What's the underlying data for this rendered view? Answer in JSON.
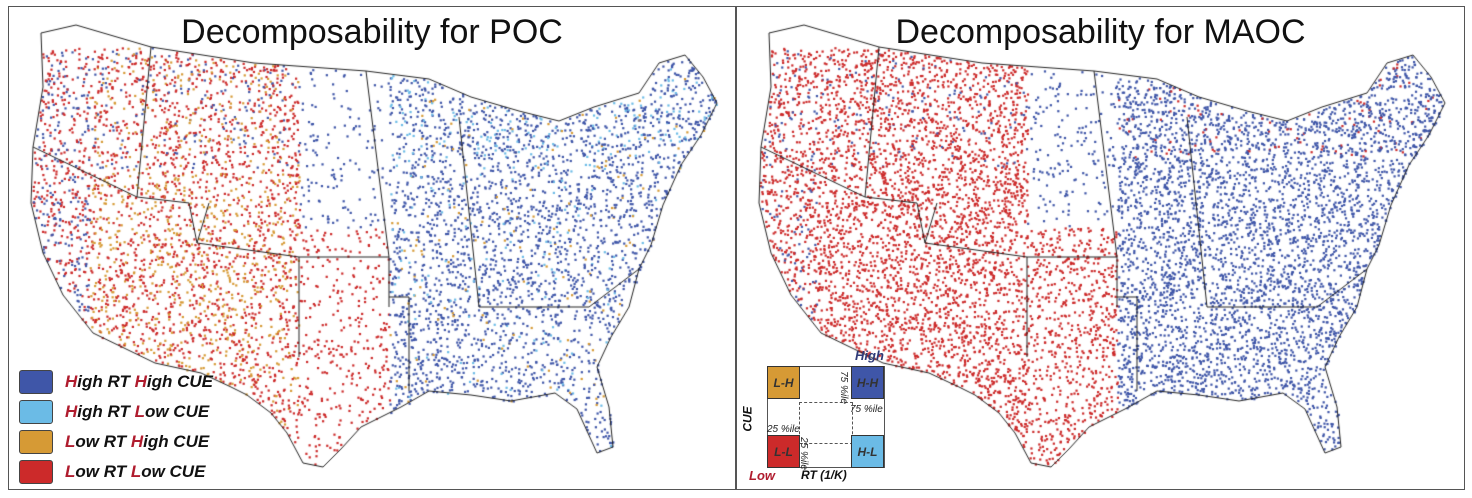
{
  "panels": [
    {
      "title": "Decomposability for POC"
    },
    {
      "title": "Decomposability for MAOC"
    }
  ],
  "colors": {
    "HH": "#3f56a8",
    "HL": "#6bbbe6",
    "LH": "#d69a35",
    "LL": "#cc2a2a"
  },
  "legend": [
    {
      "a": "H",
      "b": "igh RT ",
      "c": "H",
      "d": "igh CUE",
      "color": "#3f56a8"
    },
    {
      "a": "H",
      "b": "igh RT ",
      "c": "L",
      "d": "ow CUE",
      "color": "#6bbbe6"
    },
    {
      "a": "L",
      "b": "ow RT ",
      "c": "H",
      "d": "igh CUE",
      "color": "#d69a35"
    },
    {
      "a": "L",
      "b": "ow RT ",
      "c": "L",
      "d": "ow CUE",
      "color": "#cc2a2a"
    }
  ],
  "bivariate": {
    "lh": "L-H",
    "hh": "H-H",
    "ll": "L-L",
    "hl": "H-L",
    "high": "High",
    "low": "Low",
    "xlabel": "RT (1/K)",
    "ylabel": "CUE",
    "p75a": "75 %ile",
    "p75b": "75 %ile",
    "p25a": "25 %ile",
    "p25b": "25 %ile"
  }
}
